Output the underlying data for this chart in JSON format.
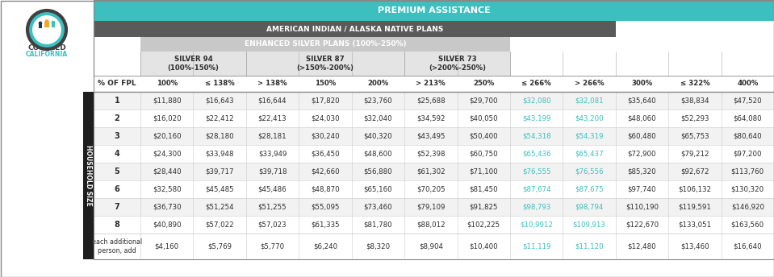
{
  "title_premium": "PREMIUM ASSISTANCE",
  "title_ai_an": "AMERICAN INDIAN / ALASKA NATIVE PLANS",
  "title_enhanced": "ENHANCED SILVER PLANS (100%-250%)",
  "silver94_label": "SILVER 94\n(100%-150%)",
  "silver87_label": "SILVER 87\n(>150%-200%)",
  "silver73_label": "SILVER 73\n(>200%-250%)",
  "col_headers": [
    "% OF FPL",
    "100%",
    "≤ 138%",
    "> 138%",
    "150%",
    "200%",
    "> 213%",
    "250%",
    "≤ 266%",
    "> 266%",
    "300%",
    "≤ 322%",
    "400%"
  ],
  "row_labels": [
    "1",
    "2",
    "3",
    "4",
    "5",
    "6",
    "7",
    "8"
  ],
  "add_label": "each additional\nperson, add",
  "data": [
    [
      "$11,880",
      "$16,643",
      "$16,644",
      "$17,820",
      "$23,760",
      "$25,688",
      "$29,700",
      "$32,080",
      "$32,081",
      "$35,640",
      "$38,834",
      "$47,520"
    ],
    [
      "$16,020",
      "$22,412",
      "$22,413",
      "$24,030",
      "$32,040",
      "$34,592",
      "$40,050",
      "$43,199",
      "$43,200",
      "$48,060",
      "$52,293",
      "$64,080"
    ],
    [
      "$20,160",
      "$28,180",
      "$28,181",
      "$30,240",
      "$40,320",
      "$43,495",
      "$50,400",
      "$54,318",
      "$54,319",
      "$60,480",
      "$65,753",
      "$80,640"
    ],
    [
      "$24,300",
      "$33,948",
      "$33,949",
      "$36,450",
      "$48,600",
      "$52,398",
      "$60,750",
      "$65,436",
      "$65,437",
      "$72,900",
      "$79,212",
      "$97,200"
    ],
    [
      "$28,440",
      "$39,717",
      "$39,718",
      "$42,660",
      "$56,880",
      "$61,302",
      "$71,100",
      "$76,555",
      "$76,556",
      "$85,320",
      "$92,672",
      "$113,760"
    ],
    [
      "$32,580",
      "$45,485",
      "$45,486",
      "$48,870",
      "$65,160",
      "$70,205",
      "$81,450",
      "$87,674",
      "$87,675",
      "$97,740",
      "$106,132",
      "$130,320"
    ],
    [
      "$36,730",
      "$51,254",
      "$51,255",
      "$55,095",
      "$73,460",
      "$79,109",
      "$91,825",
      "$98,793",
      "$98,794",
      "$110,190",
      "$119,591",
      "$146,920"
    ],
    [
      "$40,890",
      "$57,022",
      "$57,023",
      "$61,335",
      "$81,780",
      "$88,012",
      "$102,225",
      "$10,9912",
      "$109,913",
      "$122,670",
      "$133,051",
      "$163,560"
    ],
    [
      "$4,160",
      "$5,769",
      "$5,770",
      "$6,240",
      "$8,320",
      "$8,904",
      "$10,400",
      "$11,119",
      "$11,120",
      "$12,480",
      "$13,460",
      "$16,640"
    ]
  ],
  "color_teal": "#3BBFBF",
  "color_dark_gray": "#5A5A5A",
  "color_medium_gray": "#8C8C8C",
  "color_light_gray": "#C8C8C8",
  "color_lighter_gray": "#E4E4E4",
  "color_white": "#FFFFFF",
  "color_row_odd": "#F2F2F2",
  "color_row_even": "#FFFFFF",
  "color_dark_col": "#1E1E1E",
  "color_teal_text": "#3BBFBF",
  "color_border": "#AAAAAA",
  "color_text_dark": "#2D2D2D",
  "color_orange": "#F5A623",
  "color_blue_dark": "#1A3A5C",
  "logo_outer_color": "#444444",
  "logo_teal": "#3BBFBF"
}
